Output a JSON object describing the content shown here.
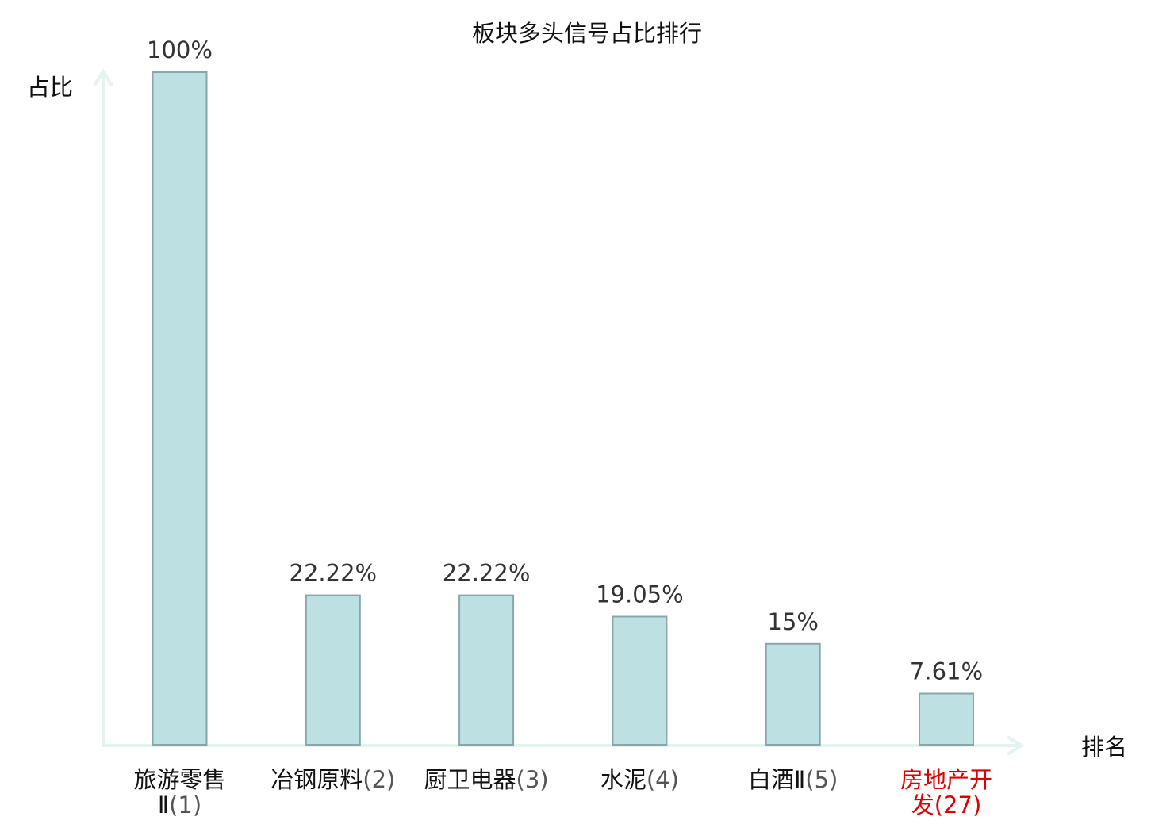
{
  "chart_data": {
    "type": "bar",
    "title": "板块多头信号占比排行",
    "ylabel": "占比",
    "xlabel": "排名",
    "categories": [
      {
        "name": "旅游零售Ⅱ",
        "rank": "(1)",
        "highlight": false
      },
      {
        "name": "冶钢原料",
        "rank": "(2)",
        "highlight": false
      },
      {
        "name": "厨卫电器",
        "rank": "(3)",
        "highlight": false
      },
      {
        "name": "水泥",
        "rank": "(4)",
        "highlight": false
      },
      {
        "name": "白酒Ⅱ",
        "rank": "(5)",
        "highlight": false
      },
      {
        "name": "房地产开发",
        "rank": "(27)",
        "highlight": true
      }
    ],
    "values": [
      100,
      22.22,
      22.22,
      19.05,
      15,
      7.61
    ],
    "value_labels": [
      "100%",
      "22.22%",
      "22.22%",
      "19.05%",
      "15%",
      "7.61%"
    ],
    "ylim": [
      0,
      100
    ],
    "grid": false
  },
  "colors": {
    "bar_fill": "#bde0e3",
    "bar_stroke": "#88a7ab",
    "axis": "#e3f3f0",
    "text": "#333333",
    "highlight": "#e00000"
  }
}
